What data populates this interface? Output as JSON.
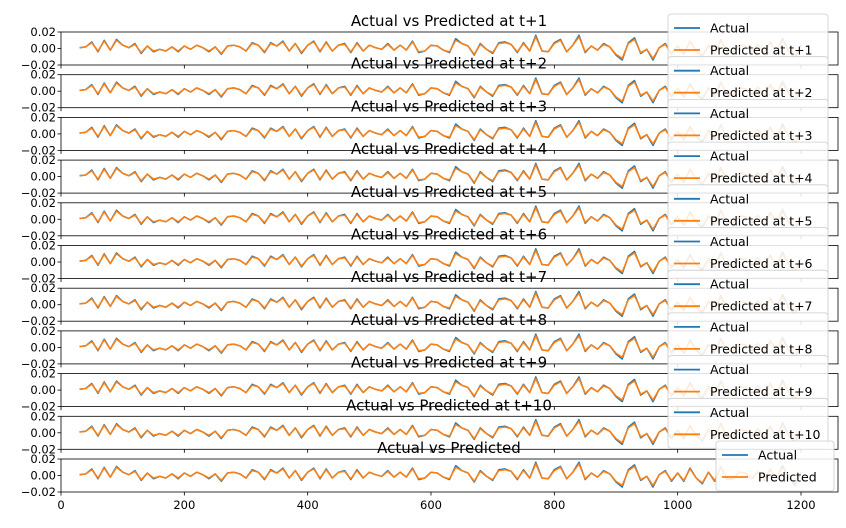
{
  "colors": {
    "actual": "#1f77b4",
    "predicted": "#ff7f0e",
    "axis": "#000000",
    "background": "#ffffff"
  },
  "chart_data": [
    {
      "type": "line",
      "title": "Actual vs Predicted at t+1",
      "xlim": [
        0,
        1260
      ],
      "ylim": [
        -0.02,
        0.02
      ],
      "yticks": [
        "0.02",
        "0.00",
        "−0.02"
      ],
      "legend": "top-right",
      "series": [
        {
          "name": "Actual"
        },
        {
          "name": "Predicted at t+1"
        }
      ]
    },
    {
      "type": "line",
      "title": "Actual vs Predicted at t+2",
      "xlim": [
        0,
        1260
      ],
      "ylim": [
        -0.02,
        0.02
      ],
      "yticks": [
        "0.02",
        "0.00",
        "−0.02"
      ],
      "legend": "top-right",
      "series": [
        {
          "name": "Actual"
        },
        {
          "name": "Predicted at t+2"
        }
      ]
    },
    {
      "type": "line",
      "title": "Actual vs Predicted at t+3",
      "xlim": [
        0,
        1260
      ],
      "ylim": [
        -0.02,
        0.02
      ],
      "yticks": [
        "0.02",
        "0.00",
        "−0.02"
      ],
      "legend": "top-right",
      "series": [
        {
          "name": "Actual"
        },
        {
          "name": "Predicted at t+3"
        }
      ]
    },
    {
      "type": "line",
      "title": "Actual vs Predicted at t+4",
      "xlim": [
        0,
        1260
      ],
      "ylim": [
        -0.02,
        0.02
      ],
      "yticks": [
        "0.02",
        "0.00",
        "−0.02"
      ],
      "legend": "top-right",
      "series": [
        {
          "name": "Actual"
        },
        {
          "name": "Predicted at t+4"
        }
      ]
    },
    {
      "type": "line",
      "title": "Actual vs Predicted at t+5",
      "xlim": [
        0,
        1260
      ],
      "ylim": [
        -0.02,
        0.02
      ],
      "yticks": [
        "0.02",
        "0.00",
        "−0.02"
      ],
      "legend": "top-right",
      "series": [
        {
          "name": "Actual"
        },
        {
          "name": "Predicted at t+5"
        }
      ]
    },
    {
      "type": "line",
      "title": "Actual vs Predicted at t+6",
      "xlim": [
        0,
        1260
      ],
      "ylim": [
        -0.02,
        0.02
      ],
      "yticks": [
        "0.02",
        "0.00",
        "−0.02"
      ],
      "legend": "top-right",
      "series": [
        {
          "name": "Actual"
        },
        {
          "name": "Predicted at t+6"
        }
      ]
    },
    {
      "type": "line",
      "title": "Actual vs Predicted at t+7",
      "xlim": [
        0,
        1260
      ],
      "ylim": [
        -0.02,
        0.02
      ],
      "yticks": [
        "0.02",
        "0.00",
        "−0.02"
      ],
      "legend": "top-right",
      "series": [
        {
          "name": "Actual"
        },
        {
          "name": "Predicted at t+7"
        }
      ]
    },
    {
      "type": "line",
      "title": "Actual vs Predicted at t+8",
      "xlim": [
        0,
        1260
      ],
      "ylim": [
        -0.02,
        0.02
      ],
      "yticks": [
        "0.02",
        "0.00",
        "−0.02"
      ],
      "legend": "top-right",
      "series": [
        {
          "name": "Actual"
        },
        {
          "name": "Predicted at t+8"
        }
      ]
    },
    {
      "type": "line",
      "title": "Actual vs Predicted at t+9",
      "xlim": [
        0,
        1260
      ],
      "ylim": [
        -0.02,
        0.02
      ],
      "yticks": [
        "0.02",
        "0.00",
        "−0.02"
      ],
      "legend": "top-right",
      "series": [
        {
          "name": "Actual"
        },
        {
          "name": "Predicted at t+9"
        }
      ]
    },
    {
      "type": "line",
      "title": "Actual vs Predicted at t+10",
      "xlim": [
        0,
        1260
      ],
      "ylim": [
        -0.02,
        0.02
      ],
      "yticks": [
        "0.02",
        "0.00",
        "−0.02"
      ],
      "legend": "top-right",
      "series": [
        {
          "name": "Actual"
        },
        {
          "name": "Predicted at t+10"
        }
      ]
    },
    {
      "type": "line",
      "title": "Actual vs Predicted",
      "xlim": [
        0,
        1260
      ],
      "ylim": [
        -0.02,
        0.02
      ],
      "yticks": [
        "0.02",
        "0.00",
        "−0.02"
      ],
      "xticks": [
        0,
        200,
        400,
        600,
        800,
        1000,
        1200
      ],
      "legend": "right",
      "series": [
        {
          "name": "Actual"
        },
        {
          "name": "Predicted"
        }
      ]
    }
  ],
  "shared_series": {
    "x": [
      30,
      40,
      50,
      60,
      70,
      80,
      90,
      100,
      110,
      120,
      130,
      140,
      150,
      160,
      170,
      180,
      190,
      200,
      210,
      220,
      230,
      240,
      250,
      260,
      270,
      280,
      290,
      300,
      310,
      320,
      330,
      340,
      350,
      360,
      370,
      380,
      390,
      400,
      410,
      420,
      430,
      440,
      450,
      460,
      470,
      480,
      490,
      500,
      510,
      520,
      530,
      540,
      550,
      560,
      570,
      580,
      590,
      600,
      610,
      620,
      630,
      640,
      650,
      660,
      670,
      680,
      690,
      700,
      710,
      720,
      730,
      740,
      750,
      760,
      770,
      780,
      790,
      800,
      810,
      820,
      830,
      840,
      850,
      860,
      870,
      880,
      890,
      900,
      910,
      920,
      930,
      940,
      950,
      960,
      970,
      980,
      990,
      1000,
      1010,
      1020,
      1030,
      1040,
      1050,
      1060,
      1070,
      1080,
      1090,
      1100,
      1110,
      1120,
      1130,
      1140,
      1150,
      1160,
      1170,
      1180,
      1190,
      1200
    ],
    "actual": [
      0.001,
      0.002,
      0.008,
      -0.004,
      0.01,
      -0.002,
      0.011,
      0.004,
      0.001,
      0.006,
      -0.006,
      0.003,
      -0.004,
      -0.001,
      -0.003,
      0.002,
      -0.004,
      0.003,
      -0.001,
      0.004,
      0.001,
      -0.004,
      0.002,
      -0.007,
      0.003,
      0.004,
      0.002,
      -0.003,
      0.007,
      0.004,
      -0.005,
      0.007,
      0.003,
      0.009,
      -0.003,
      0.006,
      -0.006,
      0.004,
      0.009,
      -0.004,
      0.008,
      -0.003,
      0.004,
      0.006,
      -0.005,
      0.007,
      -0.003,
      0.004,
      0.001,
      -0.001,
      0.006,
      -0.002,
      0.004,
      -0.002,
      0.009,
      -0.005,
      -0.003,
      0.004,
      0.003,
      -0.002,
      -0.005,
      0.012,
      0.006,
      0.003,
      -0.008,
      0.006,
      -0.001,
      -0.006,
      0.007,
      0.008,
      0.005,
      -0.005,
      0.007,
      -0.003,
      0.016,
      -0.003,
      -0.004,
      0.007,
      0.011,
      -0.004,
      0.004,
      0.016,
      -0.005,
      0.003,
      -0.002,
      0.006,
      0.002,
      -0.008,
      -0.014,
      0.007,
      0.013,
      -0.006,
      -0.001,
      -0.014,
      0.001,
      0.006,
      -0.007,
      0.003,
      -0.007,
      0.009,
      -0.003,
      -0.01,
      0.004,
      -0.007,
      0.011,
      -0.005,
      -0.004,
      0.004,
      0.003,
      -0.004,
      0.005,
      -0.006,
      0.008,
      -0.005,
      0.012,
      -0.003,
      -0.012,
      0.004
    ],
    "predicted": [
      0.001,
      0.002,
      0.007,
      -0.003,
      0.009,
      -0.002,
      0.01,
      0.004,
      0.001,
      0.005,
      -0.005,
      0.003,
      -0.003,
      -0.001,
      -0.003,
      0.002,
      -0.003,
      0.003,
      -0.001,
      0.004,
      0.001,
      -0.003,
      0.002,
      -0.006,
      0.003,
      0.004,
      0.002,
      -0.003,
      0.006,
      0.004,
      -0.004,
      0.006,
      0.003,
      0.008,
      -0.003,
      0.006,
      -0.005,
      0.004,
      0.008,
      -0.003,
      0.007,
      -0.003,
      0.004,
      0.005,
      -0.004,
      0.006,
      -0.003,
      0.004,
      0.001,
      -0.001,
      0.005,
      -0.002,
      0.004,
      -0.002,
      0.008,
      -0.004,
      -0.003,
      0.004,
      0.003,
      -0.002,
      -0.004,
      0.01,
      0.006,
      0.003,
      -0.007,
      0.005,
      -0.001,
      -0.005,
      0.006,
      0.007,
      0.005,
      -0.004,
      0.006,
      -0.003,
      0.014,
      -0.003,
      -0.004,
      0.006,
      0.01,
      -0.004,
      0.004,
      0.014,
      -0.004,
      0.003,
      -0.002,
      0.005,
      0.002,
      -0.007,
      -0.012,
      0.006,
      0.011,
      -0.005,
      -0.001,
      -0.012,
      0.001,
      0.005,
      -0.006,
      0.003,
      -0.006,
      0.008,
      -0.003,
      -0.009,
      0.004,
      -0.006,
      0.01,
      -0.004,
      -0.004,
      0.004,
      0.003,
      -0.004,
      0.005,
      -0.005,
      0.007,
      -0.004,
      0.01,
      -0.003,
      -0.01,
      0.004
    ]
  }
}
